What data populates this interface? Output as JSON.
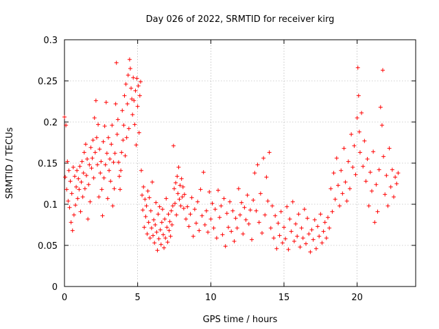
{
  "chart_data": {
    "type": "scatter",
    "title": "Day 026 of 2022, SRMTID for receiver kirg",
    "xlabel": "GPS time / hours",
    "ylabel": "SRMTID / TECUs",
    "xlim": [
      0,
      24
    ],
    "ylim": [
      0,
      0.3
    ],
    "xticks": [
      0,
      5,
      10,
      15,
      20
    ],
    "yticks": [
      0,
      0.05,
      0.1,
      0.15,
      0.2,
      0.25,
      0.3
    ],
    "xtick_labels": [
      "0",
      "5",
      "10",
      "15",
      "20"
    ],
    "ytick_labels": [
      "0",
      "0.05",
      "0.1",
      "0.15",
      "0.2",
      "0.25",
      "0.3"
    ],
    "grid": true,
    "legend": "none",
    "marker": "+",
    "series": [
      {
        "color": "#ff0000",
        "points": [
          [
            0.0,
            0.206
          ],
          [
            0.05,
            0.133
          ],
          [
            0.1,
            0.196
          ],
          [
            0.15,
            0.118
          ],
          [
            0.2,
            0.152
          ],
          [
            0.25,
            0.104
          ],
          [
            0.3,
            0.141
          ],
          [
            0.35,
            0.096
          ],
          [
            0.4,
            0.128
          ],
          [
            0.45,
            0.078
          ],
          [
            0.5,
            0.113
          ],
          [
            0.55,
            0.068
          ],
          [
            0.6,
            0.145
          ],
          [
            0.65,
            0.087
          ],
          [
            0.7,
            0.134
          ],
          [
            0.75,
            0.099
          ],
          [
            0.8,
            0.121
          ],
          [
            0.85,
            0.141
          ],
          [
            0.9,
            0.107
          ],
          [
            0.95,
            0.131
          ],
          [
            1.0,
            0.118
          ],
          [
            1.05,
            0.146
          ],
          [
            1.1,
            0.091
          ],
          [
            1.15,
            0.127
          ],
          [
            1.2,
            0.152
          ],
          [
            1.25,
            0.109
          ],
          [
            1.3,
            0.138
          ],
          [
            1.35,
            0.163
          ],
          [
            1.4,
            0.119
          ],
          [
            1.45,
            0.173
          ],
          [
            1.5,
            0.135
          ],
          [
            1.55,
            0.155
          ],
          [
            1.6,
            0.082
          ],
          [
            1.65,
            0.124
          ],
          [
            1.7,
            0.148
          ],
          [
            1.75,
            0.103
          ],
          [
            1.8,
            0.169
          ],
          [
            1.85,
            0.144
          ],
          [
            1.9,
            0.156
          ],
          [
            1.95,
            0.178
          ],
          [
            2.0,
            0.132
          ],
          [
            2.05,
            0.205
          ],
          [
            2.1,
            0.163
          ],
          [
            2.15,
            0.226
          ],
          [
            2.2,
            0.181
          ],
          [
            2.25,
            0.148
          ],
          [
            2.3,
            0.197
          ],
          [
            2.35,
            0.109
          ],
          [
            2.4,
            0.167
          ],
          [
            2.45,
            0.138
          ],
          [
            2.5,
            0.152
          ],
          [
            2.55,
            0.118
          ],
          [
            2.6,
            0.086
          ],
          [
            2.65,
            0.176
          ],
          [
            2.7,
            0.132
          ],
          [
            2.75,
            0.195
          ],
          [
            2.8,
            0.148
          ],
          [
            2.85,
            0.224
          ],
          [
            2.9,
            0.162
          ],
          [
            2.95,
            0.107
          ],
          [
            3.0,
            0.181
          ],
          [
            3.05,
            0.141
          ],
          [
            3.1,
            0.155
          ],
          [
            3.15,
            0.128
          ],
          [
            3.2,
            0.173
          ],
          [
            3.25,
            0.196
          ],
          [
            3.3,
            0.098
          ],
          [
            3.35,
            0.151
          ],
          [
            3.4,
            0.119
          ],
          [
            3.45,
            0.162
          ],
          [
            3.5,
            0.222
          ],
          [
            3.55,
            0.272
          ],
          [
            3.6,
            0.185
          ],
          [
            3.65,
            0.203
          ],
          [
            3.7,
            0.151
          ],
          [
            3.75,
            0.134
          ],
          [
            3.8,
            0.118
          ],
          [
            3.85,
            0.141
          ],
          [
            3.9,
            0.163
          ],
          [
            3.95,
            0.214
          ],
          [
            4.0,
            0.178
          ],
          [
            4.05,
            0.196
          ],
          [
            4.1,
            0.232
          ],
          [
            4.15,
            0.159
          ],
          [
            4.2,
            0.246
          ],
          [
            4.25,
            0.181
          ],
          [
            4.3,
            0.222
          ],
          [
            4.35,
            0.257
          ],
          [
            4.4,
            0.192
          ],
          [
            4.45,
            0.276
          ],
          [
            4.5,
            0.265
          ],
          [
            4.55,
            0.241
          ],
          [
            4.6,
            0.228
          ],
          [
            4.65,
            0.209
          ],
          [
            4.7,
            0.254
          ],
          [
            4.75,
            0.226
          ],
          [
            4.8,
            0.197
          ],
          [
            4.85,
            0.238
          ],
          [
            4.9,
            0.172
          ],
          [
            4.95,
            0.253
          ],
          [
            5.0,
            0.219
          ],
          [
            5.05,
            0.244
          ],
          [
            5.1,
            0.187
          ],
          [
            5.15,
            0.232
          ],
          [
            5.2,
            0.249
          ],
          [
            5.25,
            0.141
          ],
          [
            5.3,
            0.111
          ],
          [
            5.35,
            0.093
          ],
          [
            5.4,
            0.121
          ],
          [
            5.45,
            0.072
          ],
          [
            5.5,
            0.106
          ],
          [
            5.55,
            0.085
          ],
          [
            5.6,
            0.098
          ],
          [
            5.65,
            0.064
          ],
          [
            5.7,
            0.116
          ],
          [
            5.75,
            0.078
          ],
          [
            5.8,
            0.108
          ],
          [
            5.85,
            0.059
          ],
          [
            5.9,
            0.092
          ],
          [
            5.95,
            0.071
          ],
          [
            6.0,
            0.127
          ],
          [
            6.05,
            0.062
          ],
          [
            6.1,
            0.081
          ],
          [
            6.15,
            0.053
          ],
          [
            6.2,
            0.075
          ],
          [
            6.25,
            0.102
          ],
          [
            6.3,
            0.066
          ],
          [
            6.35,
            0.044
          ],
          [
            6.4,
            0.088
          ],
          [
            6.45,
            0.058
          ],
          [
            6.5,
            0.097
          ],
          [
            6.55,
            0.069
          ],
          [
            6.6,
            0.051
          ],
          [
            6.65,
            0.078
          ],
          [
            6.7,
            0.094
          ],
          [
            6.75,
            0.063
          ],
          [
            6.8,
            0.047
          ],
          [
            6.85,
            0.082
          ],
          [
            6.9,
            0.059
          ],
          [
            6.95,
            0.107
          ],
          [
            7.0,
            0.072
          ],
          [
            7.05,
            0.054
          ],
          [
            7.1,
            0.088
          ],
          [
            7.15,
            0.068
          ],
          [
            7.2,
            0.079
          ],
          [
            7.25,
            0.061
          ],
          [
            7.3,
            0.092
          ],
          [
            7.35,
            0.075
          ],
          [
            7.4,
            0.098
          ],
          [
            7.45,
            0.171
          ],
          [
            7.5,
            0.119
          ],
          [
            7.55,
            0.101
          ],
          [
            7.6,
            0.126
          ],
          [
            7.65,
            0.087
          ],
          [
            7.7,
            0.134
          ],
          [
            7.75,
            0.113
          ],
          [
            7.8,
            0.145
          ],
          [
            7.85,
            0.106
          ],
          [
            7.9,
            0.123
          ],
          [
            7.95,
            0.098
          ],
          [
            8.0,
            0.131
          ],
          [
            8.05,
            0.109
          ],
          [
            8.1,
            0.121
          ],
          [
            8.15,
            0.095
          ],
          [
            8.2,
            0.112
          ],
          [
            8.3,
            0.082
          ],
          [
            8.4,
            0.097
          ],
          [
            8.5,
            0.073
          ],
          [
            8.6,
            0.088
          ],
          [
            8.7,
            0.108
          ],
          [
            8.8,
            0.061
          ],
          [
            8.9,
            0.094
          ],
          [
            9.0,
            0.077
          ],
          [
            9.1,
            0.103
          ],
          [
            9.2,
            0.068
          ],
          [
            9.3,
            0.118
          ],
          [
            9.4,
            0.086
          ],
          [
            9.5,
            0.139
          ],
          [
            9.6,
            0.075
          ],
          [
            9.7,
            0.092
          ],
          [
            9.8,
            0.066
          ],
          [
            9.9,
            0.115
          ],
          [
            10.0,
            0.082
          ],
          [
            10.1,
            0.101
          ],
          [
            10.2,
            0.071
          ],
          [
            10.3,
            0.094
          ],
          [
            10.4,
            0.059
          ],
          [
            10.5,
            0.117
          ],
          [
            10.6,
            0.084
          ],
          [
            10.7,
            0.098
          ],
          [
            10.8,
            0.063
          ],
          [
            10.9,
            0.107
          ],
          [
            11.0,
            0.049
          ],
          [
            11.1,
            0.089
          ],
          [
            11.2,
            0.072
          ],
          [
            11.3,
            0.103
          ],
          [
            11.4,
            0.067
          ],
          [
            11.5,
            0.092
          ],
          [
            11.6,
            0.055
          ],
          [
            11.7,
            0.083
          ],
          [
            11.8,
            0.071
          ],
          [
            11.9,
            0.119
          ],
          [
            12.0,
            0.087
          ],
          [
            12.1,
            0.102
          ],
          [
            12.2,
            0.064
          ],
          [
            12.3,
            0.096
          ],
          [
            12.4,
            0.081
          ],
          [
            12.5,
            0.111
          ],
          [
            12.6,
            0.076
          ],
          [
            12.7,
            0.093
          ],
          [
            12.8,
            0.057
          ],
          [
            12.9,
            0.105
          ],
          [
            13.0,
            0.138
          ],
          [
            13.1,
            0.092
          ],
          [
            13.2,
            0.148
          ],
          [
            13.3,
            0.078
          ],
          [
            13.4,
            0.113
          ],
          [
            13.5,
            0.065
          ],
          [
            13.6,
            0.156
          ],
          [
            13.7,
            0.087
          ],
          [
            13.8,
            0.133
          ],
          [
            13.9,
            0.104
          ],
          [
            14.0,
            0.163
          ],
          [
            14.1,
            0.071
          ],
          [
            14.2,
            0.098
          ],
          [
            14.3,
            0.059
          ],
          [
            14.4,
            0.086
          ],
          [
            14.5,
            0.046
          ],
          [
            14.6,
            0.077
          ],
          [
            14.7,
            0.062
          ],
          [
            14.8,
            0.091
          ],
          [
            14.9,
            0.053
          ],
          [
            15.0,
            0.072
          ],
          [
            15.1,
            0.058
          ],
          [
            15.2,
            0.097
          ],
          [
            15.3,
            0.045
          ],
          [
            15.4,
            0.082
          ],
          [
            15.5,
            0.067
          ],
          [
            15.6,
            0.103
          ],
          [
            15.7,
            0.055
          ],
          [
            15.8,
            0.076
          ],
          [
            15.9,
            0.061
          ],
          [
            16.0,
            0.088
          ],
          [
            16.1,
            0.048
          ],
          [
            16.2,
            0.071
          ],
          [
            16.3,
            0.059
          ],
          [
            16.4,
            0.094
          ],
          [
            16.5,
            0.052
          ],
          [
            16.6,
            0.083
          ],
          [
            16.7,
            0.064
          ],
          [
            16.8,
            0.042
          ],
          [
            16.9,
            0.069
          ],
          [
            17.0,
            0.057
          ],
          [
            17.1,
            0.081
          ],
          [
            17.2,
            0.046
          ],
          [
            17.3,
            0.073
          ],
          [
            17.4,
            0.061
          ],
          [
            17.5,
            0.088
          ],
          [
            17.6,
            0.053
          ],
          [
            17.7,
            0.067
          ],
          [
            17.8,
            0.078
          ],
          [
            17.9,
            0.059
          ],
          [
            18.0,
            0.084
          ],
          [
            18.1,
            0.071
          ],
          [
            18.2,
            0.119
          ],
          [
            18.3,
            0.091
          ],
          [
            18.4,
            0.138
          ],
          [
            18.5,
            0.106
          ],
          [
            18.6,
            0.156
          ],
          [
            18.7,
            0.123
          ],
          [
            18.8,
            0.098
          ],
          [
            18.9,
            0.141
          ],
          [
            19.0,
            0.113
          ],
          [
            19.1,
            0.168
          ],
          [
            19.2,
            0.127
          ],
          [
            19.3,
            0.104
          ],
          [
            19.4,
            0.152
          ],
          [
            19.5,
            0.119
          ],
          [
            19.6,
            0.185
          ],
          [
            19.7,
            0.145
          ],
          [
            19.8,
            0.171
          ],
          [
            19.9,
            0.136
          ],
          [
            20.0,
            0.205
          ],
          [
            20.05,
            0.266
          ],
          [
            20.1,
            0.232
          ],
          [
            20.15,
            0.188
          ],
          [
            20.2,
            0.163
          ],
          [
            20.3,
            0.211
          ],
          [
            20.4,
            0.146
          ],
          [
            20.5,
            0.177
          ],
          [
            20.6,
            0.128
          ],
          [
            20.7,
            0.155
          ],
          [
            20.8,
            0.098
          ],
          [
            20.9,
            0.139
          ],
          [
            21.0,
            0.116
          ],
          [
            21.1,
            0.164
          ],
          [
            21.2,
            0.078
          ],
          [
            21.3,
            0.124
          ],
          [
            21.4,
            0.091
          ],
          [
            21.5,
            0.142
          ],
          [
            21.6,
            0.218
          ],
          [
            21.7,
            0.196
          ],
          [
            21.75,
            0.263
          ],
          [
            21.8,
            0.158
          ],
          [
            21.9,
            0.112
          ],
          [
            22.0,
            0.135
          ],
          [
            22.1,
            0.098
          ],
          [
            22.2,
            0.168
          ],
          [
            22.3,
            0.121
          ],
          [
            22.4,
            0.142
          ],
          [
            22.5,
            0.109
          ],
          [
            22.6,
            0.133
          ],
          [
            22.7,
            0.125
          ],
          [
            22.8,
            0.138
          ]
        ]
      }
    ]
  }
}
